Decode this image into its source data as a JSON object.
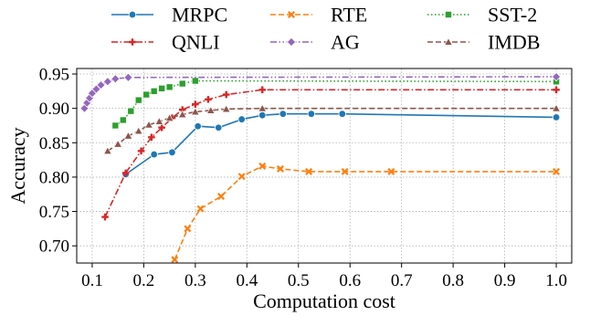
{
  "chart_data": {
    "type": "line",
    "title": "",
    "xlabel": "Computation cost",
    "ylabel": "Accuracy",
    "xlim": [
      0.07,
      1.03
    ],
    "ylim": [
      0.675,
      0.958
    ],
    "xticks": [
      0.1,
      0.2,
      0.3,
      0.4,
      0.5,
      0.6,
      0.7,
      0.8,
      0.9,
      1.0
    ],
    "xtick_labels": [
      "0.1",
      "0.2",
      "0.3",
      "0.4",
      "0.5",
      "0.6",
      "0.7",
      "0.8",
      "0.9",
      "1.0"
    ],
    "yticks": [
      0.7,
      0.75,
      0.8,
      0.85,
      0.9,
      0.95
    ],
    "ytick_labels": [
      "0.70",
      "0.75",
      "0.80",
      "0.85",
      "0.90",
      "0.95"
    ],
    "grid": true,
    "legend_position": "top, above plot, 3 columns",
    "series": [
      {
        "name": "MRPC",
        "color": "#1f77b4",
        "line_style": "solid",
        "marker": "circle",
        "points": [
          [
            0.165,
            0.804
          ],
          [
            0.22,
            0.833
          ],
          [
            0.255,
            0.836
          ],
          [
            0.305,
            0.874
          ],
          [
            0.345,
            0.872
          ],
          [
            0.39,
            0.884
          ],
          [
            0.43,
            0.89
          ],
          [
            0.47,
            0.892
          ],
          [
            0.525,
            0.892
          ],
          [
            0.585,
            0.892
          ],
          [
            1.0,
            0.887
          ]
        ]
      },
      {
        "name": "RTE",
        "color": "#ff7f0e",
        "line_style": "dashed",
        "marker": "x",
        "points": [
          [
            0.26,
            0.68
          ],
          [
            0.285,
            0.725
          ],
          [
            0.31,
            0.754
          ],
          [
            0.35,
            0.772
          ],
          [
            0.39,
            0.801
          ],
          [
            0.43,
            0.816
          ],
          [
            0.465,
            0.812
          ],
          [
            0.52,
            0.808
          ],
          [
            0.59,
            0.808
          ],
          [
            0.68,
            0.808
          ],
          [
            1.0,
            0.808
          ]
        ]
      },
      {
        "name": "SST-2",
        "color": "#2ca02c",
        "line_style": "dotted",
        "marker": "square",
        "points": [
          [
            0.145,
            0.875
          ],
          [
            0.16,
            0.883
          ],
          [
            0.175,
            0.896
          ],
          [
            0.19,
            0.912
          ],
          [
            0.205,
            0.92
          ],
          [
            0.22,
            0.925
          ],
          [
            0.235,
            0.929
          ],
          [
            0.25,
            0.931
          ],
          [
            0.275,
            0.936
          ],
          [
            0.3,
            0.94
          ],
          [
            1.0,
            0.939
          ]
        ]
      },
      {
        "name": "QNLI",
        "color": "#d62728",
        "line_style": "dashdot",
        "marker": "plus",
        "points": [
          [
            0.125,
            0.742
          ],
          [
            0.165,
            0.806
          ],
          [
            0.195,
            0.838
          ],
          [
            0.215,
            0.858
          ],
          [
            0.235,
            0.872
          ],
          [
            0.255,
            0.886
          ],
          [
            0.275,
            0.898
          ],
          [
            0.3,
            0.906
          ],
          [
            0.325,
            0.913
          ],
          [
            0.36,
            0.92
          ],
          [
            0.43,
            0.927
          ],
          [
            1.0,
            0.927
          ]
        ]
      },
      {
        "name": "AG",
        "color": "#9467bd",
        "line_style": "dashdotdot",
        "marker": "diamond",
        "points": [
          [
            0.085,
            0.9
          ],
          [
            0.09,
            0.908
          ],
          [
            0.095,
            0.915
          ],
          [
            0.1,
            0.922
          ],
          [
            0.108,
            0.928
          ],
          [
            0.117,
            0.934
          ],
          [
            0.13,
            0.939
          ],
          [
            0.145,
            0.943
          ],
          [
            0.17,
            0.945
          ],
          [
            1.0,
            0.946
          ]
        ]
      },
      {
        "name": "IMDB",
        "color": "#8c564b",
        "line_style": "dashed",
        "marker": "triangle",
        "points": [
          [
            0.13,
            0.838
          ],
          [
            0.15,
            0.848
          ],
          [
            0.17,
            0.86
          ],
          [
            0.19,
            0.867
          ],
          [
            0.21,
            0.876
          ],
          [
            0.23,
            0.881
          ],
          [
            0.25,
            0.886
          ],
          [
            0.275,
            0.891
          ],
          [
            0.3,
            0.895
          ],
          [
            0.33,
            0.897
          ],
          [
            0.36,
            0.899
          ],
          [
            0.43,
            0.9
          ],
          [
            1.0,
            0.9
          ]
        ]
      }
    ]
  }
}
